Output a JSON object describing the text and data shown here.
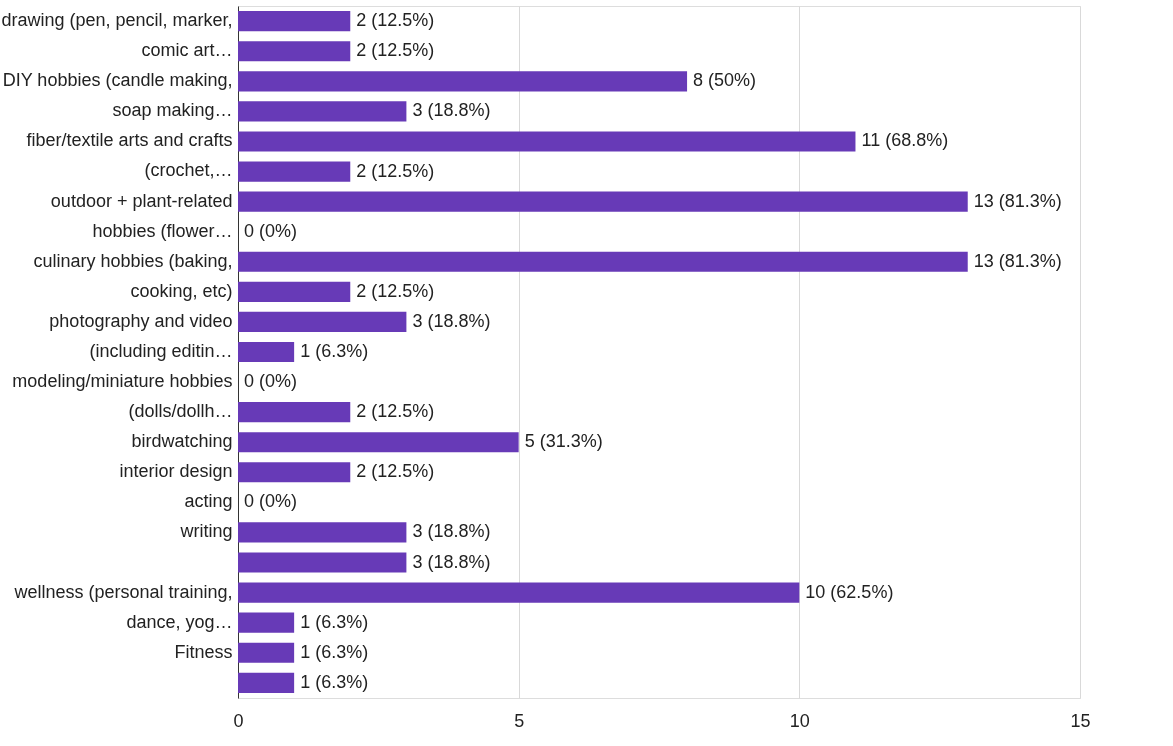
{
  "chart_data": {
    "type": "bar",
    "orientation": "horizontal",
    "categories": [
      "drawing (pen, pencil, marker, comic art…",
      null,
      "DIY hobbies (candle making, soap making…",
      null,
      "fiber/textile arts and crafts (crochet,…",
      null,
      "outdoor + plant-related hobbies (flower…",
      null,
      "culinary hobbies (baking, cooking, etc)",
      null,
      "photography and video (including editin…",
      null,
      "modeling/miniature hobbies (dolls/dollh…",
      null,
      "birdwatching",
      "interior design",
      "acting",
      "writing",
      null,
      "wellness (personal training, dance, yog…",
      null,
      "Fitness",
      null
    ],
    "values": [
      2,
      2,
      8,
      3,
      11,
      2,
      13,
      0,
      13,
      2,
      3,
      1,
      0,
      2,
      5,
      2,
      0,
      3,
      3,
      10,
      1,
      1,
      1
    ],
    "value_labels": [
      "2 (12.5%)",
      "2 (12.5%)",
      "8 (50%)",
      "3 (18.8%)",
      "11 (68.8%)",
      "2 (12.5%)",
      "13 (81.3%)",
      "0 (0%)",
      "13 (81.3%)",
      "2 (12.5%)",
      "3 (18.8%)",
      "1 (6.3%)",
      "0 (0%)",
      "2 (12.5%)",
      "5 (31.3%)",
      "2 (12.5%)",
      "0 (0%)",
      "3 (18.8%)",
      "3 (18.8%)",
      "10 (62.5%)",
      "1 (6.3%)",
      "1 (6.3%)",
      "1 (6.3%)"
    ],
    "color": "#673ab7",
    "xlim": [
      0,
      15
    ],
    "xticks": [
      0,
      5,
      10,
      15
    ],
    "grid": "x"
  }
}
